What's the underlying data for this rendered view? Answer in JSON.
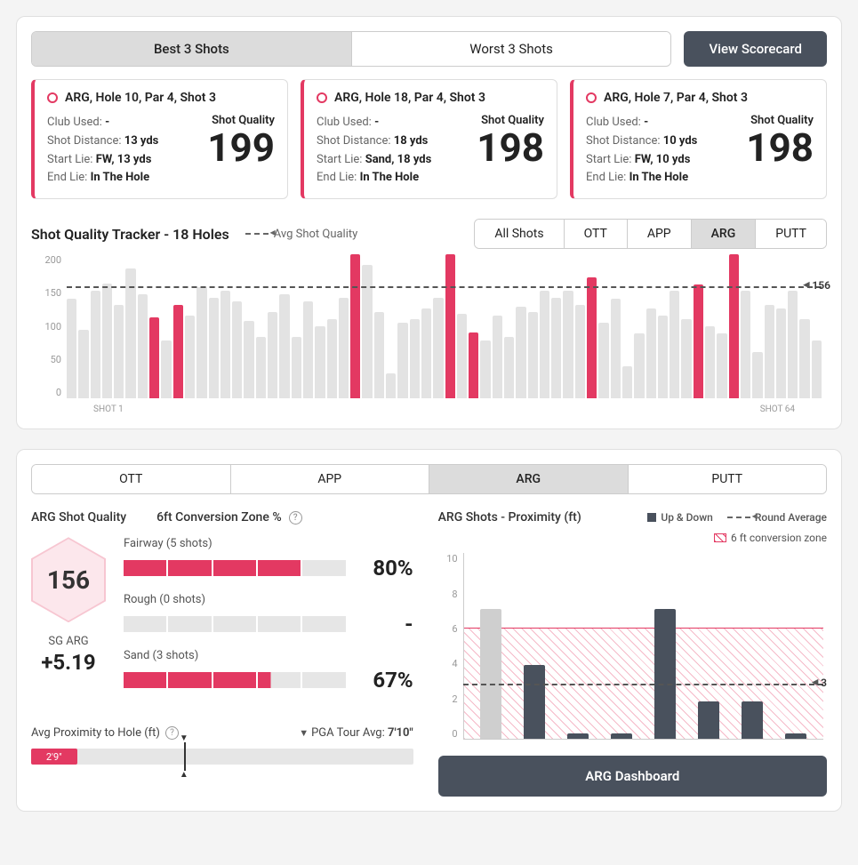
{
  "colors": {
    "accent": "#e33962",
    "dark": "#49515d",
    "grey_bar": "#e3e3e3"
  },
  "top_tabs": {
    "best": "Best 3 Shots",
    "worst": "Worst 3 Shots",
    "active": "best"
  },
  "view_scorecard": "View Scorecard",
  "shot_cards": [
    {
      "title": "ARG, Hole 10, Par 4, Shot 3",
      "club_used_lbl": "Club Used:",
      "club_used": "-",
      "dist_lbl": "Shot Distance:",
      "dist": "13 yds",
      "start_lbl": "Start Lie:",
      "start": "FW, 13 yds",
      "end_lbl": "End Lie:",
      "end": "In The Hole",
      "sq_label": "Shot Quality",
      "sq": "199"
    },
    {
      "title": "ARG, Hole 18, Par 4, Shot 3",
      "club_used_lbl": "Club Used:",
      "club_used": "-",
      "dist_lbl": "Shot Distance:",
      "dist": "18 yds",
      "start_lbl": "Start Lie:",
      "start": "Sand, 18 yds",
      "end_lbl": "End Lie:",
      "end": "In The Hole",
      "sq_label": "Shot Quality",
      "sq": "198"
    },
    {
      "title": "ARG, Hole 7, Par 4, Shot 3",
      "club_used_lbl": "Club Used:",
      "club_used": "-",
      "dist_lbl": "Shot Distance:",
      "dist": "10 yds",
      "start_lbl": "Start Lie:",
      "start": "FW, 10 yds",
      "end_lbl": "End Lie:",
      "end": "In The Hole",
      "sq_label": "Shot Quality",
      "sq": "198"
    }
  ],
  "tracker": {
    "title": "Shot Quality Tracker - 18 Holes",
    "avg_label": "Avg Shot Quality",
    "tabs": [
      "All Shots",
      "OTT",
      "APP",
      "ARG",
      "PUTT"
    ],
    "active_tab": "ARG",
    "ylim": [
      0,
      200
    ],
    "ytick_step": 50,
    "avg_value": 156,
    "x_first": "SHOT 1",
    "x_last": "SHOT 64",
    "bars": [
      {
        "v": 138
      },
      {
        "v": 95
      },
      {
        "v": 150
      },
      {
        "v": 160
      },
      {
        "v": 130
      },
      {
        "v": 180
      },
      {
        "v": 145
      },
      {
        "v": 112,
        "hl": true
      },
      {
        "v": 80
      },
      {
        "v": 130,
        "hl": true
      },
      {
        "v": 115
      },
      {
        "v": 155
      },
      {
        "v": 140
      },
      {
        "v": 150
      },
      {
        "v": 135
      },
      {
        "v": 108
      },
      {
        "v": 85
      },
      {
        "v": 120
      },
      {
        "v": 145
      },
      {
        "v": 85
      },
      {
        "v": 135
      },
      {
        "v": 100
      },
      {
        "v": 110
      },
      {
        "v": 140
      },
      {
        "v": 200,
        "hl": true
      },
      {
        "v": 185
      },
      {
        "v": 120
      },
      {
        "v": 35
      },
      {
        "v": 105
      },
      {
        "v": 110
      },
      {
        "v": 125
      },
      {
        "v": 140
      },
      {
        "v": 200,
        "hl": true
      },
      {
        "v": 118
      },
      {
        "v": 92,
        "hl": true
      },
      {
        "v": 80
      },
      {
        "v": 115
      },
      {
        "v": 85
      },
      {
        "v": 128
      },
      {
        "v": 120
      },
      {
        "v": 150
      },
      {
        "v": 140
      },
      {
        "v": 150
      },
      {
        "v": 130
      },
      {
        "v": 168,
        "hl": true
      },
      {
        "v": 105
      },
      {
        "v": 138
      },
      {
        "v": 45
      },
      {
        "v": 90
      },
      {
        "v": 125
      },
      {
        "v": 115
      },
      {
        "v": 150
      },
      {
        "v": 110
      },
      {
        "v": 158,
        "hl": true
      },
      {
        "v": 100
      },
      {
        "v": 90
      },
      {
        "v": 200,
        "hl": true
      },
      {
        "v": 150
      },
      {
        "v": 65
      },
      {
        "v": 130
      },
      {
        "v": 125
      },
      {
        "v": 150
      },
      {
        "v": 110
      },
      {
        "v": 80
      }
    ]
  },
  "lower_tabs": {
    "items": [
      "OTT",
      "APP",
      "ARG",
      "PUTT"
    ],
    "active": "ARG"
  },
  "arg_quality_label": "ARG Shot Quality",
  "zone_header": "6ft Conversion Zone %",
  "hex_value": "156",
  "sg": {
    "label": "SG ARG",
    "value": "+5.19"
  },
  "zones": [
    {
      "label": "Fairway (5 shots)",
      "pct_label": "80%",
      "filled": 4,
      "total": 5
    },
    {
      "label": "Rough (0 shots)",
      "pct_label": "-",
      "filled": 0,
      "total": 5
    },
    {
      "label": "Sand (3 shots)",
      "pct_label": "67%",
      "filled": 3.3,
      "total": 5
    }
  ],
  "prox": {
    "label": "Avg Proximity to Hole (ft)",
    "pga_label": "PGA Tour Avg:",
    "pga_value": "7'10\"",
    "value_label": "2'9\"",
    "fill_pct": 12,
    "marker_pct": 40
  },
  "proximity_chart": {
    "title": "ARG Shots - Proximity (ft)",
    "legend_updown": "Up & Down",
    "legend_avg": "Round Average",
    "legend_zone": "6 ft conversion zone",
    "ylim": [
      0,
      10
    ],
    "ytick_step": 2,
    "zone_max": 6,
    "avg_value": 3,
    "bars": [
      {
        "v": 7,
        "updown": false
      },
      {
        "v": 4,
        "updown": true
      },
      {
        "v": 0.3,
        "updown": true
      },
      {
        "v": 0.3,
        "updown": true
      },
      {
        "v": 7,
        "updown": true
      },
      {
        "v": 2,
        "updown": true
      },
      {
        "v": 2,
        "updown": true
      },
      {
        "v": 0.3,
        "updown": true
      }
    ]
  },
  "dashboard_btn": "ARG Dashboard"
}
